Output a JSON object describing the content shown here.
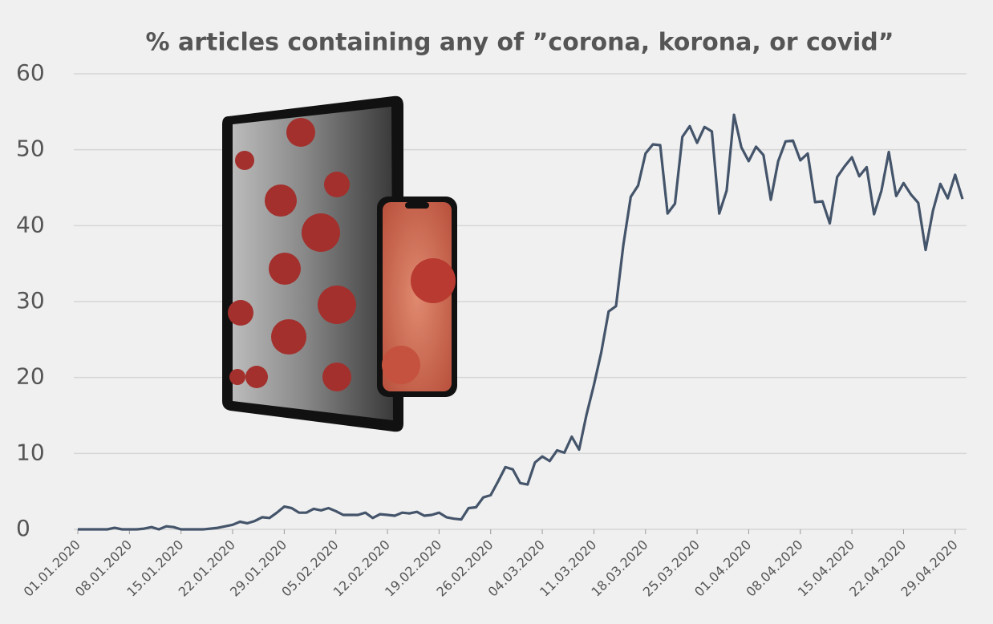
{
  "chart_data": {
    "type": "line",
    "title": "% articles containing any of ”corona, korona, or covid”",
    "categories": [
      "01.01.2020",
      null,
      null,
      null,
      null,
      null,
      null,
      "08.01.2020",
      null,
      null,
      null,
      null,
      null,
      null,
      "15.01.2020",
      null,
      null,
      null,
      null,
      null,
      null,
      "22.01.2020",
      null,
      null,
      null,
      null,
      null,
      null,
      "29.01.2020",
      null,
      null,
      null,
      null,
      null,
      null,
      "05.02.2020",
      null,
      null,
      null,
      null,
      null,
      null,
      "12.02.2020",
      null,
      null,
      null,
      null,
      null,
      null,
      "19.02.2020",
      null,
      null,
      null,
      null,
      null,
      null,
      "26.02.2020",
      null,
      null,
      null,
      null,
      null,
      null,
      "04.03.2020",
      null,
      null,
      null,
      null,
      null,
      null,
      "11.03.2020",
      null,
      null,
      null,
      null,
      null,
      null,
      "18.03.2020",
      null,
      null,
      null,
      null,
      null,
      null,
      "25.03.2020",
      null,
      null,
      null,
      null,
      null,
      null,
      "01.04.2020",
      null,
      null,
      null,
      null,
      null,
      null,
      "08.04.2020",
      null,
      null,
      null,
      null,
      null,
      null,
      "15.04.2020",
      null,
      null,
      null,
      null,
      null,
      null,
      "22.04.2020",
      null,
      null,
      null,
      null,
      null,
      null,
      "29.04.2020",
      null
    ],
    "values": [
      0,
      0,
      0,
      0,
      0,
      0.2,
      0,
      0,
      0,
      0.1,
      0.3,
      0,
      0.4,
      0.3,
      0,
      0,
      0,
      0,
      0.1,
      0.2,
      0.4,
      0.6,
      1.0,
      0.8,
      1.1,
      1.6,
      1.5,
      2.2,
      3.0,
      2.8,
      2.2,
      2.2,
      2.7,
      2.5,
      2.8,
      2.4,
      1.9,
      1.9,
      1.9,
      2.2,
      1.5,
      2.0,
      1.9,
      1.8,
      2.2,
      2.1,
      2.3,
      1.8,
      1.9,
      2.2,
      1.6,
      1.4,
      1.3,
      2.8,
      2.9,
      4.2,
      4.5,
      6.3,
      8.2,
      7.9,
      6.1,
      5.9,
      8.8,
      9.6,
      9.0,
      10.4,
      10.1,
      12.2,
      10.5,
      15.1,
      19.0,
      23.3,
      28.7,
      29.4,
      37.5,
      43.8,
      45.3,
      49.5,
      50.7,
      50.6,
      41.6,
      42.9,
      51.7,
      53.1,
      50.9,
      53.0,
      52.4,
      41.6,
      44.6,
      54.6,
      50.3,
      48.5,
      50.4,
      49.3,
      43.4,
      48.5,
      51.1,
      51.2,
      48.6,
      49.5,
      43.1,
      43.2,
      40.3,
      46.4,
      47.8,
      49.0,
      46.5,
      47.7,
      41.5,
      44.6,
      49.7,
      43.9,
      45.6,
      44.1,
      43.0,
      36.8,
      42.0,
      45.5,
      43.6,
      46.7,
      43.5
    ],
    "color": "#44546a",
    "ylim": [
      0,
      60
    ],
    "yticks": [
      0,
      10,
      20,
      30,
      40,
      50,
      60
    ],
    "grid": true
  }
}
